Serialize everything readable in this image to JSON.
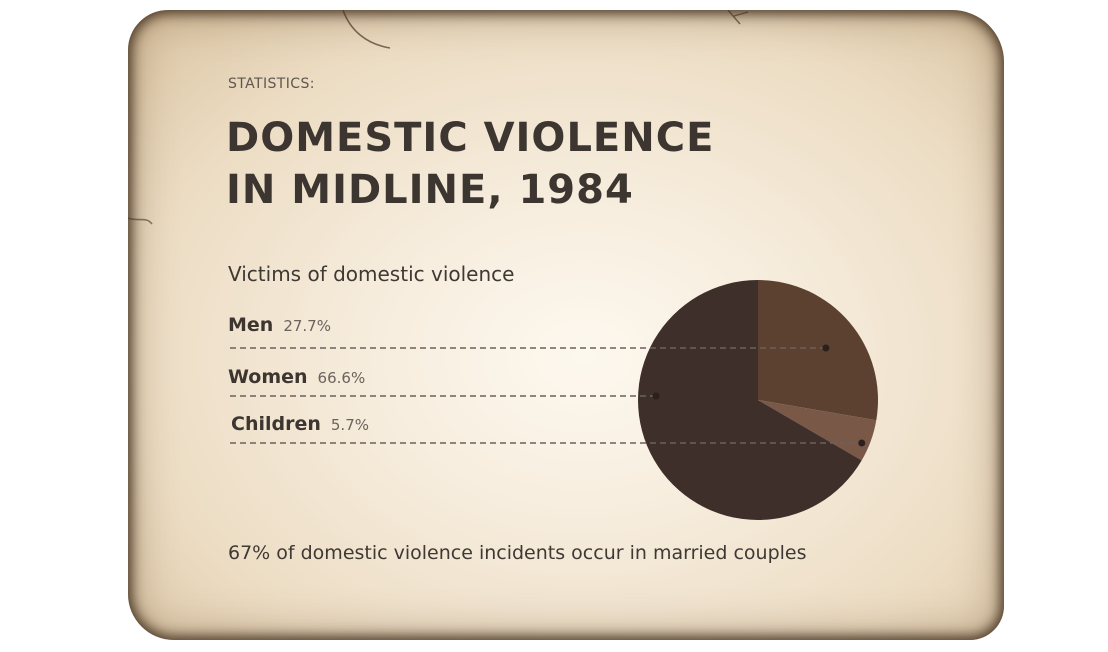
{
  "header": {
    "eyebrow": "STATISTICS:",
    "title_line1": "DOMESTIC VIOLENCE",
    "title_line2": "IN MIDLINE, 1984"
  },
  "chart_data": {
    "type": "pie",
    "title": "Victims of domestic violence",
    "slices": [
      {
        "label": "Men",
        "value": 27.7,
        "display": "27.7%",
        "color": "#5c4030"
      },
      {
        "label": "Children",
        "value": 5.7,
        "display": "5.7%",
        "color": "#7a5848"
      },
      {
        "label": "Women",
        "value": 66.6,
        "display": "66.6%",
        "color": "#3e2f2a"
      }
    ],
    "legend_order": [
      "Men",
      "Women",
      "Children"
    ],
    "start_angle_deg": 0,
    "direction": "clockwise"
  },
  "footnote": "67% of domestic violence incidents occur in married couples"
}
